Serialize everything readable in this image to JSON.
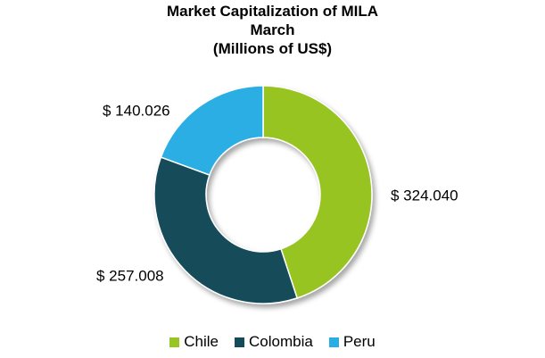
{
  "chart_data": {
    "type": "pie",
    "variant": "doughnut",
    "title_lines": [
      "Market Capitalization of MILA",
      "March",
      "(Millions of US$)"
    ],
    "categories": [
      "Chile",
      "Colombia",
      "Peru"
    ],
    "values": [
      324040,
      257008,
      140026
    ],
    "data_labels": [
      "$ 324.040",
      "$ 257.008",
      "$ 140.026"
    ],
    "colors": [
      "#98c424",
      "#134b5a",
      "#29aee3"
    ],
    "legend_position": "bottom"
  }
}
